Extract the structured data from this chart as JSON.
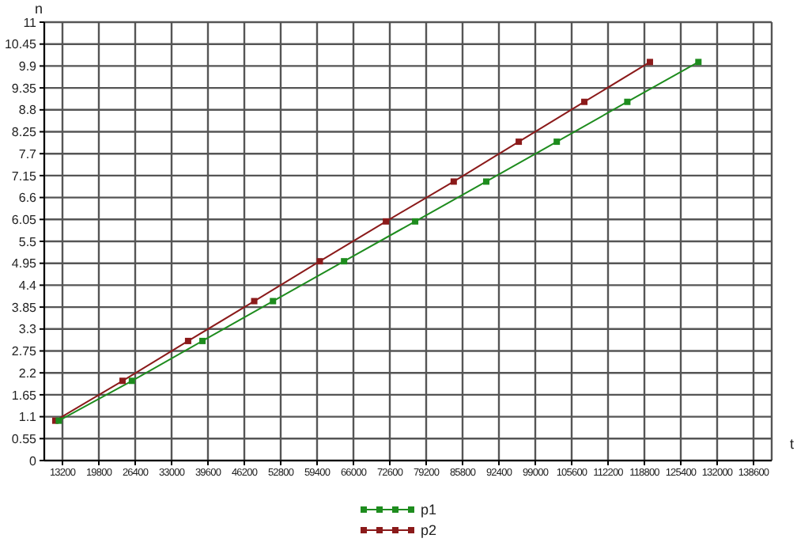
{
  "chart_data": {
    "type": "line",
    "xlabel": "t",
    "ylabel": "n",
    "series": [
      {
        "name": "p1",
        "color": "#1e8c1e",
        "x": [
          12540,
          25800,
          38600,
          51400,
          64300,
          77200,
          90100,
          102900,
          115700,
          128600
        ],
        "values": [
          1,
          2,
          3,
          4,
          5,
          6,
          7,
          8,
          9,
          10
        ]
      },
      {
        "name": "p2",
        "color": "#8b1a1a",
        "x": [
          11900,
          24100,
          36000,
          48000,
          59900,
          71900,
          84200,
          96000,
          107900,
          119800
        ],
        "values": [
          1,
          2,
          3,
          4,
          5,
          6,
          7,
          8,
          9,
          10
        ]
      }
    ],
    "xlim": [
      9900,
      141900
    ],
    "xticks": [
      13200,
      19800,
      26400,
      33000,
      39600,
      46200,
      52800,
      59400,
      66000,
      72600,
      79200,
      85800,
      92400,
      99000,
      105600,
      112200,
      118800,
      125400,
      132000,
      138600
    ],
    "ylim": [
      0,
      11
    ],
    "yticks": [
      0,
      0.55,
      1.1,
      1.65,
      2.2,
      2.75,
      3.3,
      3.85,
      4.4,
      4.95,
      5.5,
      6.05,
      6.6,
      7.15,
      7.7,
      8.25,
      8.8,
      9.35,
      9.9,
      10.45,
      11
    ],
    "grid": true,
    "legend": "bottom",
    "marker": "square",
    "line_style": "solid"
  }
}
